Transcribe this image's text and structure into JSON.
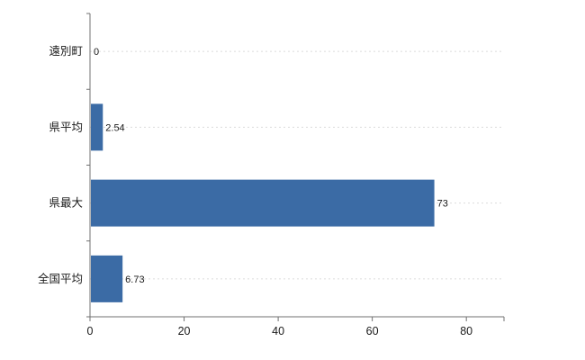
{
  "chart_data": {
    "type": "bar",
    "orientation": "horizontal",
    "title": "",
    "categories": [
      "遠別町",
      "県平均",
      "県最大",
      "全国平均"
    ],
    "values": [
      0,
      2.54,
      73,
      6.73
    ],
    "value_labels": [
      "0",
      "2.54",
      "73",
      "6.73"
    ],
    "x_ticks": [
      0,
      20,
      40,
      60,
      80
    ],
    "xlim": [
      0,
      88
    ],
    "legend": "none",
    "grid": "faint-dotted-horizontal",
    "bar_color": "#3b6ba5",
    "axis_color": "#707070",
    "grid_color": "#dcdcdc",
    "text_color": "#1a1a1a"
  }
}
